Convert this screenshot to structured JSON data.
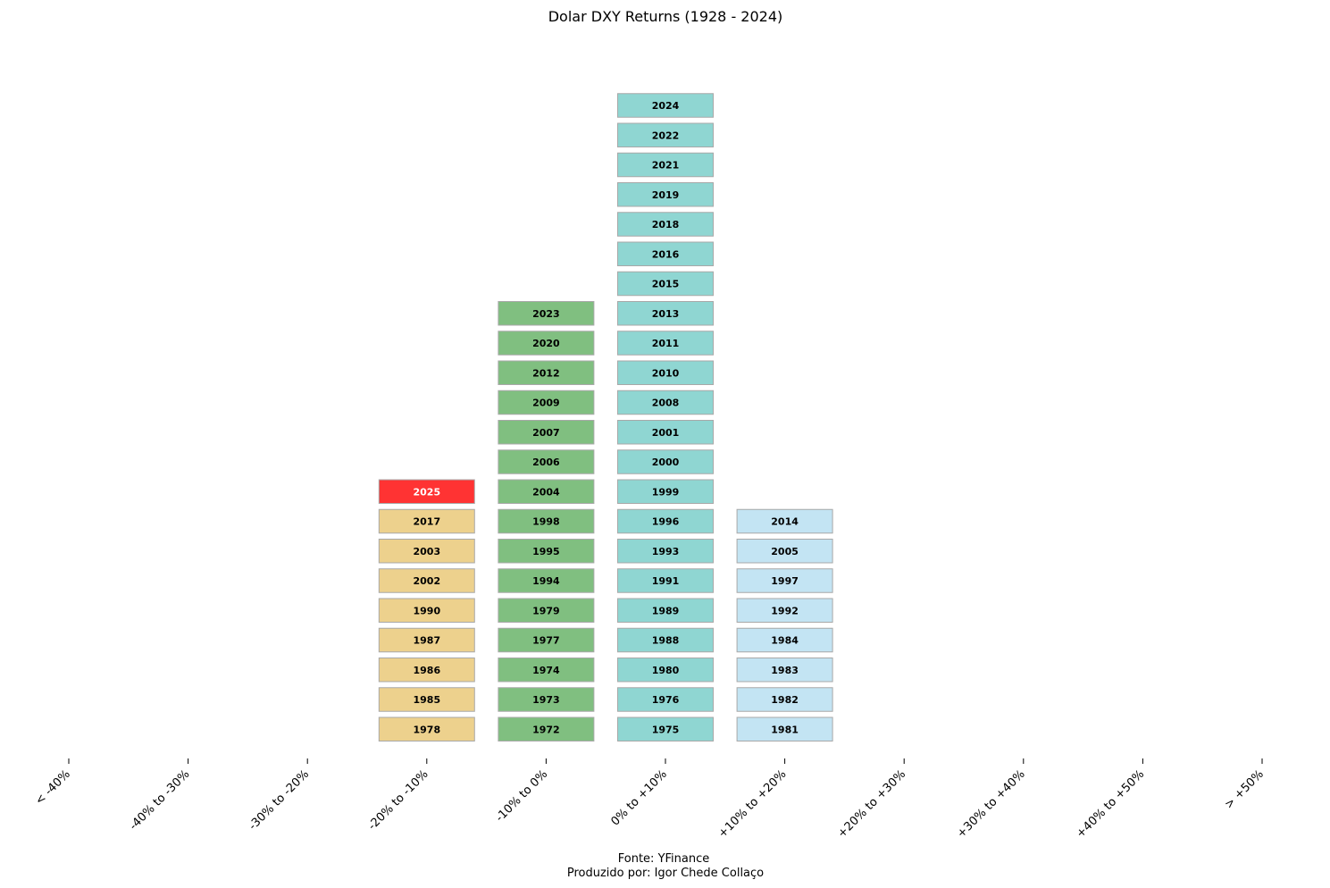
{
  "chart_data": {
    "type": "stacked-year-histogram",
    "title": "Dolar DXY Returns (1928 - 2024)",
    "categories": [
      "< -40%",
      "-40% to -30%",
      "-30% to -20%",
      "-20% to -10%",
      "-10% to 0%",
      "0% to +10%",
      "+10% to +20%",
      "+20% to +30%",
      "+30% to +40%",
      "+40% to +50%",
      "> +50%"
    ],
    "bins": [
      {
        "category": "< -40%",
        "color": "#e8a0a0",
        "years": []
      },
      {
        "category": "-40% to -30%",
        "color": "#e8a0a0",
        "years": []
      },
      {
        "category": "-30% to -20%",
        "color": "#e8a0a0",
        "years": []
      },
      {
        "category": "-20% to -10%",
        "color": "#edd18d",
        "years": [
          "1978",
          "1985",
          "1986",
          "1987",
          "1990",
          "2002",
          "2003",
          "2017",
          "2025"
        ]
      },
      {
        "category": "-10% to 0%",
        "color": "#80bf80",
        "years": [
          "1972",
          "1973",
          "1974",
          "1977",
          "1979",
          "1994",
          "1995",
          "1998",
          "2004",
          "2006",
          "2007",
          "2009",
          "2012",
          "2020",
          "2023"
        ]
      },
      {
        "category": "0% to +10%",
        "color": "#8fd6d2",
        "years": [
          "1975",
          "1976",
          "1980",
          "1988",
          "1989",
          "1991",
          "1993",
          "1996",
          "1999",
          "2000",
          "2001",
          "2008",
          "2010",
          "2011",
          "2013",
          "2015",
          "2016",
          "2018",
          "2019",
          "2021",
          "2022",
          "2024"
        ]
      },
      {
        "category": "+10% to +20%",
        "color": "#c3e4f3",
        "years": [
          "1981",
          "1982",
          "1983",
          "1984",
          "1992",
          "1997",
          "2005",
          "2014"
        ]
      },
      {
        "category": "+20% to +30%",
        "color": "#c3e4f3",
        "years": []
      },
      {
        "category": "+30% to +40%",
        "color": "#c3e4f3",
        "years": []
      },
      {
        "category": "+40% to +50%",
        "color": "#c3e4f3",
        "years": []
      },
      {
        "category": "> +50%",
        "color": "#c3e4f3",
        "years": []
      }
    ],
    "highlight": {
      "year": "2025",
      "color": "#ff3333",
      "text_color": "#ffffff"
    },
    "box_border_color": "#a8a8a8",
    "label_color": "#000000"
  },
  "footer": {
    "source": "Fonte: YFinance",
    "author": "Produzido por: Igor Chede Collaço"
  }
}
